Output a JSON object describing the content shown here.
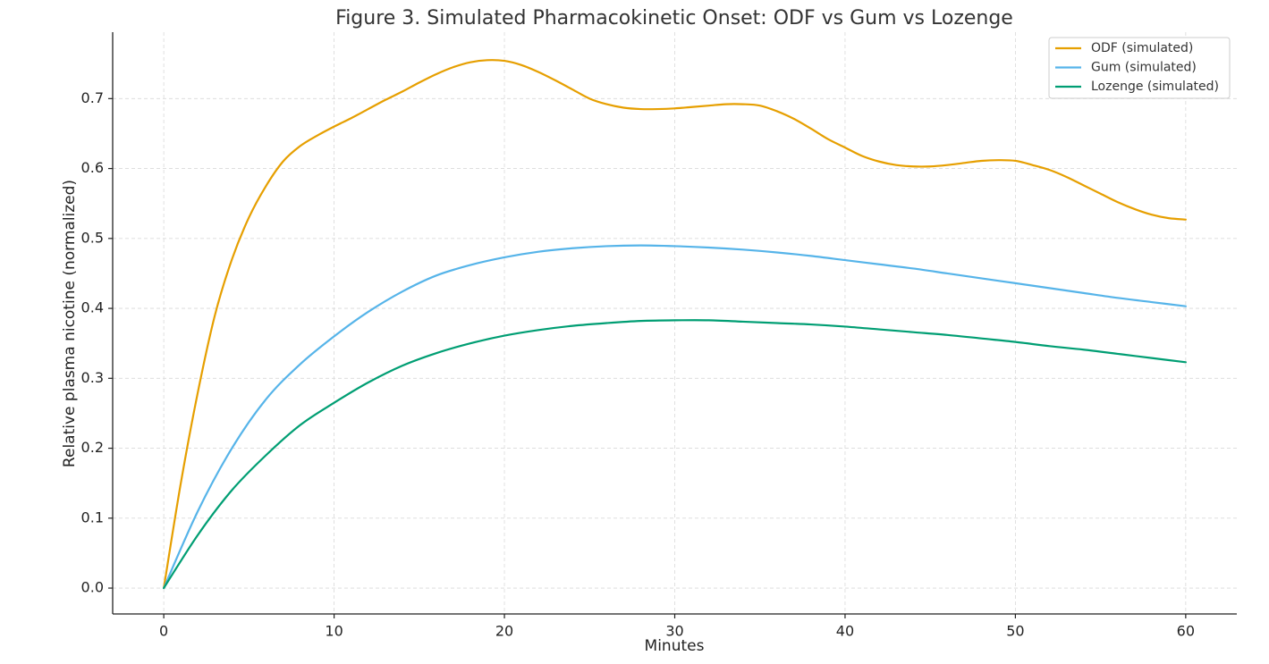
{
  "chart_data": {
    "type": "line",
    "title": "Figure 3. Simulated Pharmacokinetic Onset: ODF vs Gum vs Lozenge",
    "xlabel": "Minutes",
    "ylabel": "Relative plasma nicotine (normalized)",
    "xlim": [
      -3,
      63
    ],
    "ylim": [
      -0.037,
      0.795
    ],
    "xticks": [
      0,
      10,
      20,
      30,
      40,
      50,
      60
    ],
    "yticks": [
      0.0,
      0.1,
      0.2,
      0.3,
      0.4,
      0.5,
      0.6,
      0.7
    ],
    "xtick_labels": [
      "0",
      "10",
      "20",
      "30",
      "40",
      "50",
      "60"
    ],
    "ytick_labels": [
      "0.0",
      "0.1",
      "0.2",
      "0.3",
      "0.4",
      "0.5",
      "0.6",
      "0.7"
    ],
    "grid": true,
    "legend_position": "top-right",
    "series": [
      {
        "name": "ODF (simulated)",
        "color": "#E69F00",
        "x": [
          0,
          1,
          2,
          3,
          4,
          5,
          6,
          7,
          8,
          9,
          10,
          11,
          12,
          13,
          14,
          15,
          16,
          17,
          18,
          19,
          20,
          21,
          22,
          23,
          24,
          25,
          26,
          27,
          28,
          29,
          30,
          31,
          32,
          33,
          34,
          35,
          36,
          37,
          38,
          39,
          40,
          41,
          42,
          43,
          44,
          45,
          46,
          47,
          48,
          49,
          50,
          51,
          52,
          53,
          54,
          55,
          56,
          57,
          58,
          59,
          60
        ],
        "y": [
          0.0,
          0.15,
          0.28,
          0.39,
          0.47,
          0.53,
          0.575,
          0.61,
          0.632,
          0.647,
          0.66,
          0.672,
          0.685,
          0.698,
          0.71,
          0.723,
          0.735,
          0.745,
          0.752,
          0.755,
          0.754,
          0.748,
          0.738,
          0.726,
          0.713,
          0.7,
          0.692,
          0.687,
          0.685,
          0.685,
          0.686,
          0.688,
          0.69,
          0.692,
          0.692,
          0.69,
          0.682,
          0.671,
          0.657,
          0.642,
          0.63,
          0.618,
          0.61,
          0.605,
          0.603,
          0.603,
          0.605,
          0.608,
          0.611,
          0.612,
          0.611,
          0.605,
          0.598,
          0.588,
          0.576,
          0.564,
          0.552,
          0.542,
          0.534,
          0.529,
          0.527
        ]
      },
      {
        "name": "Gum (simulated)",
        "color": "#56B4E9",
        "x": [
          0,
          2,
          4,
          6,
          8,
          10,
          12,
          14,
          16,
          18,
          20,
          22,
          24,
          26,
          28,
          30,
          32,
          34,
          36,
          38,
          40,
          42,
          44,
          46,
          48,
          50,
          52,
          54,
          56,
          58,
          60
        ],
        "y": [
          0.0,
          0.11,
          0.2,
          0.27,
          0.32,
          0.36,
          0.395,
          0.424,
          0.447,
          0.462,
          0.473,
          0.481,
          0.486,
          0.489,
          0.49,
          0.489,
          0.487,
          0.484,
          0.48,
          0.475,
          0.469,
          0.463,
          0.457,
          0.45,
          0.443,
          0.436,
          0.429,
          0.422,
          0.415,
          0.409,
          0.403
        ]
      },
      {
        "name": "Lozenge (simulated)",
        "color": "#009E73",
        "x": [
          0,
          2,
          4,
          6,
          8,
          10,
          12,
          14,
          16,
          18,
          20,
          22,
          24,
          26,
          28,
          30,
          32,
          34,
          36,
          38,
          40,
          42,
          44,
          46,
          48,
          50,
          52,
          54,
          56,
          58,
          60
        ],
        "y": [
          0.0,
          0.076,
          0.14,
          0.19,
          0.233,
          0.265,
          0.294,
          0.318,
          0.336,
          0.35,
          0.361,
          0.369,
          0.375,
          0.379,
          0.382,
          0.383,
          0.383,
          0.381,
          0.379,
          0.377,
          0.374,
          0.37,
          0.366,
          0.362,
          0.357,
          0.352,
          0.346,
          0.341,
          0.335,
          0.329,
          0.323
        ]
      }
    ]
  }
}
